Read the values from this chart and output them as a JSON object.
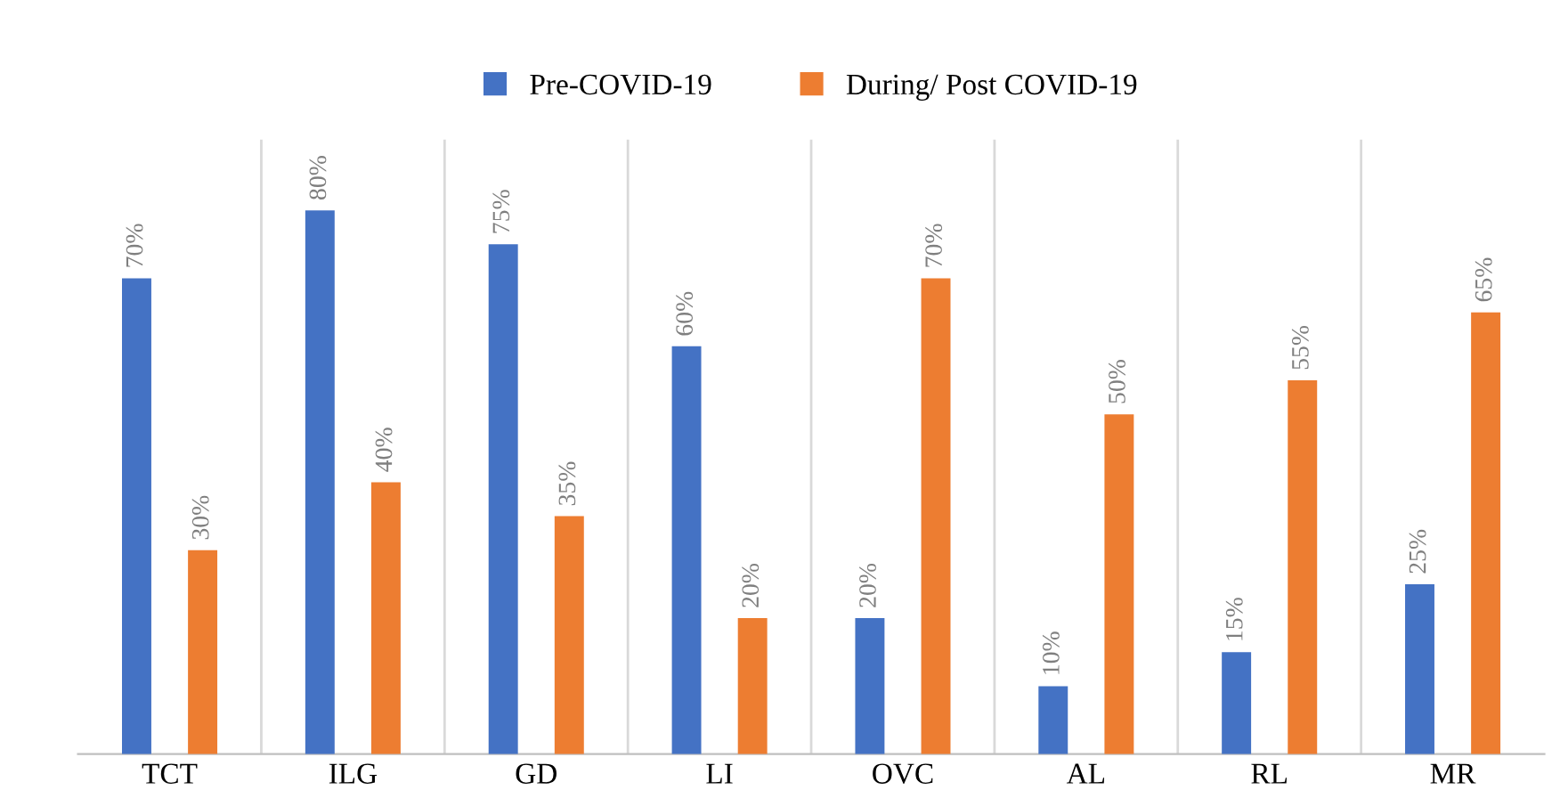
{
  "chart_data": {
    "type": "bar",
    "categories": [
      "TCT",
      "ILG",
      "GD",
      "LI",
      "OVC",
      "AL",
      "RL",
      "MR"
    ],
    "series": [
      {
        "name": "Pre-COVID-19",
        "color": "#4472c4",
        "values": [
          70,
          80,
          75,
          60,
          20,
          10,
          15,
          25
        ],
        "value_labels": [
          "70%",
          "80%",
          "75%",
          "60%",
          "20%",
          "10%",
          "15%",
          "25%"
        ]
      },
      {
        "name": "During/ Post COVID-19",
        "color": "#ed7d31",
        "values": [
          30,
          40,
          35,
          20,
          70,
          50,
          55,
          65
        ],
        "value_labels": [
          "30%",
          "40%",
          "35%",
          "20%",
          "70%",
          "50%",
          "55%",
          "65%"
        ]
      }
    ],
    "grid": "x",
    "legend": "top",
    "tick_labels": "x"
  }
}
